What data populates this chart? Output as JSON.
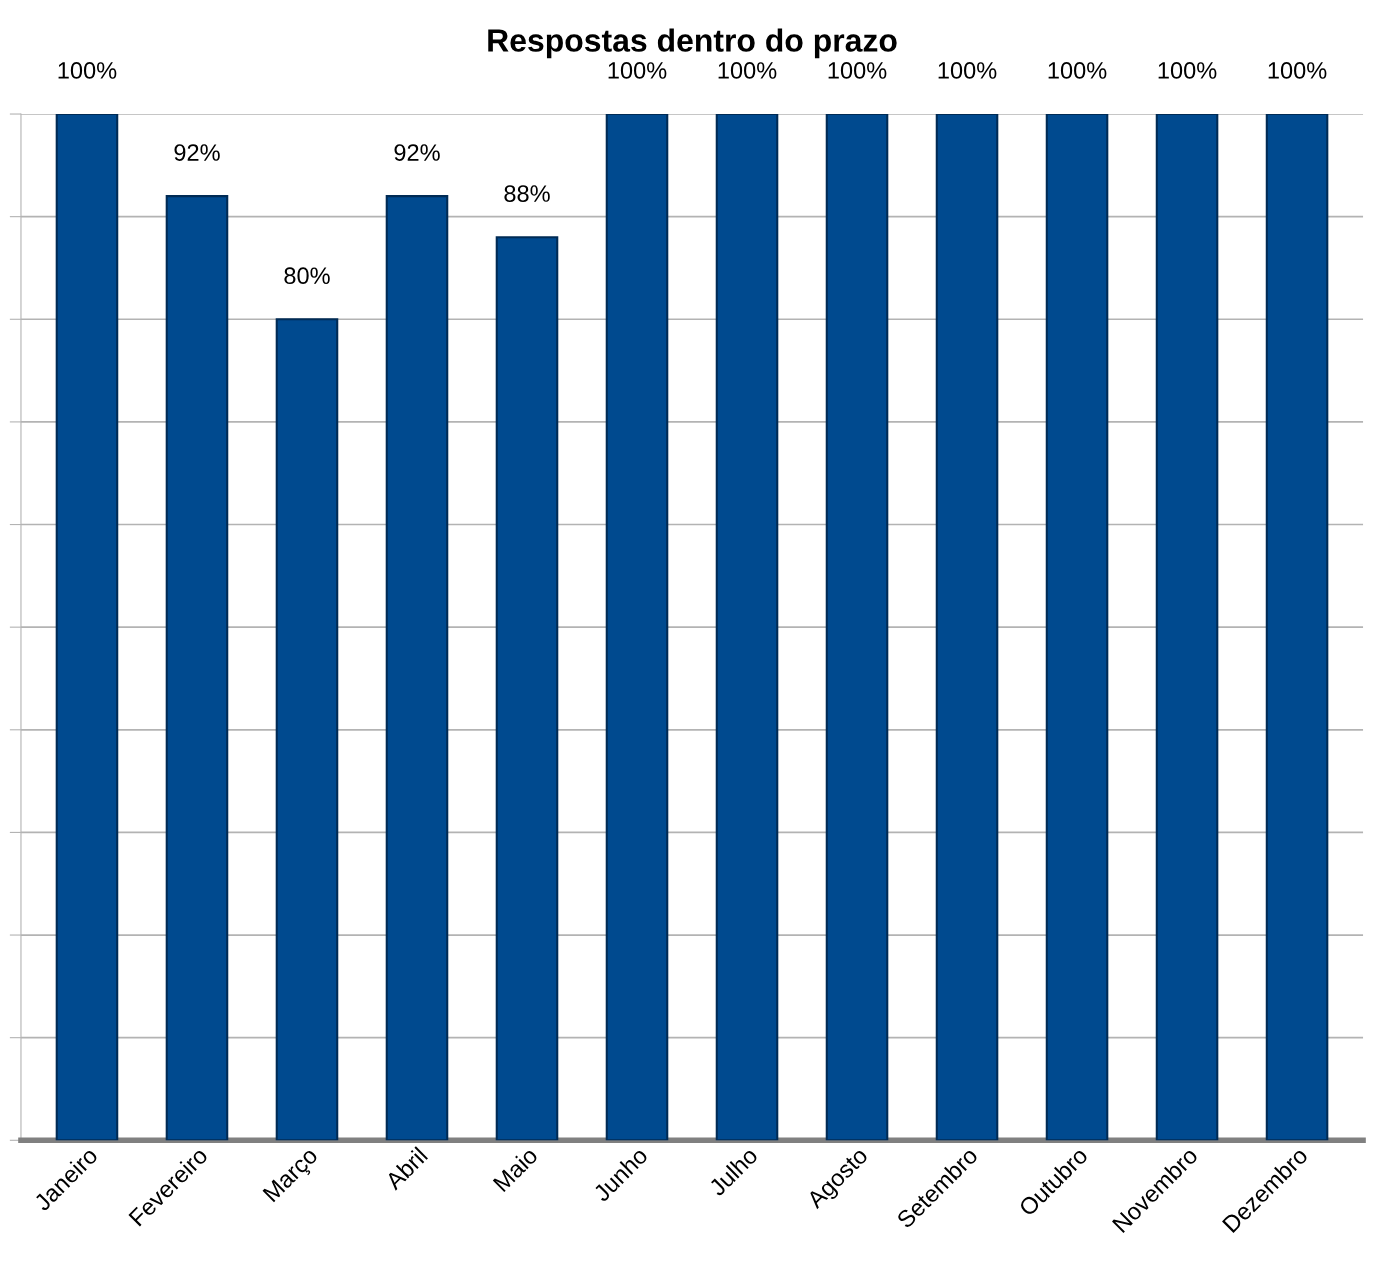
{
  "chart_data": {
    "type": "bar",
    "title": "Respostas dentro do prazo",
    "categories": [
      "Janeiro",
      "Fevereiro",
      "Março",
      "Abril",
      "Maio",
      "Junho",
      "Julho",
      "Agosto",
      "Setembro",
      "Outubro",
      "Novembro",
      "Dezembro"
    ],
    "values": [
      100,
      92,
      80,
      92,
      88,
      100,
      100,
      100,
      100,
      100,
      100,
      100
    ],
    "value_labels": [
      "100%",
      "92%",
      "80%",
      "92%",
      "88%",
      "100%",
      "100%",
      "100%",
      "100%",
      "100%",
      "100%",
      "100%"
    ],
    "color": "#004a8f",
    "ylim": [
      0,
      100
    ],
    "yticks": [
      {
        "value": 0,
        "label": null
      },
      {
        "value": 10,
        "label": null
      },
      {
        "value": 20,
        "label": null
      },
      {
        "value": 30,
        "label": null
      },
      {
        "value": 40,
        "label": null
      },
      {
        "value": 50,
        "label": null
      },
      {
        "value": 60,
        "label": null
      },
      {
        "value": 70,
        "label": null
      },
      {
        "value": 80,
        "label": null
      },
      {
        "value": 90,
        "label": null
      },
      {
        "value": 100,
        "label": null
      }
    ],
    "grid": "y",
    "tick_labels": "x"
  }
}
